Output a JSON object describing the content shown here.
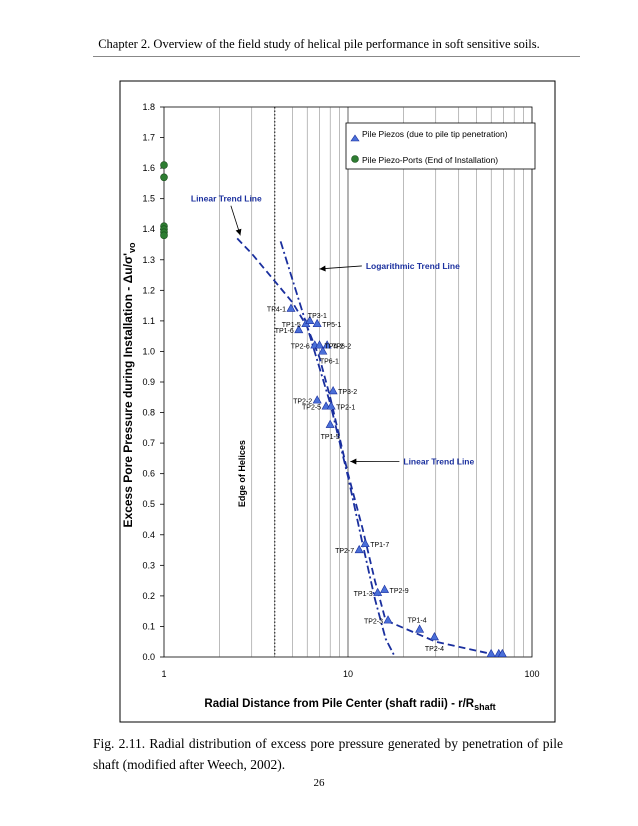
{
  "header": {
    "chapter_title": "Chapter 2.   Overview of the field study of helical pile performance in soft sensitive soils."
  },
  "figure": {
    "caption": "Fig.   2.11.   Radial distribution of excess pore pressure generated by penetration of pile shaft (modified after Weech, 2002).",
    "page_number": "26"
  },
  "chart_data": {
    "type": "scatter",
    "x_scale": "log",
    "xlim": [
      1,
      100
    ],
    "ylim": [
      0,
      1.8
    ],
    "xlabel": "Radial Distance from Pile Center (shaft radii) - r/R",
    "xlabel_sub": "shaft",
    "ylabel": "Excess Pore Pressure during Installation - Δu/σ'",
    "ylabel_sub": "vo",
    "x_ticks": [
      1,
      10,
      100
    ],
    "x_tick_labels": [
      "1",
      "10",
      "100"
    ],
    "y_ticks": [
      0,
      0.1,
      0.2,
      0.3,
      0.4,
      0.5,
      0.6,
      0.7,
      0.8,
      0.9,
      1.0,
      1.1,
      1.2,
      1.3,
      1.4,
      1.5,
      1.6,
      1.7,
      1.8
    ],
    "y_tick_labels": [
      "0.0",
      "0.1",
      "0.2",
      "0.3",
      "0.4",
      "0.5",
      "0.6",
      "0.7",
      "0.8",
      "0.9",
      "1.0",
      "1.1",
      "1.2",
      "1.3",
      "1.4",
      "1.5",
      "1.6",
      "1.7",
      "1.8"
    ],
    "legend_position": "top-right",
    "legend": [
      {
        "name": "Pile Piezos (due to pile tip penetration)",
        "marker": "triangle"
      },
      {
        "name": "Pile Piezo-Ports (End of Installation)",
        "marker": "circle"
      }
    ],
    "colors": {
      "triangle": "#4a6fd8",
      "circle": "#2e7d32",
      "line": "#1a2f9e"
    },
    "series": [
      {
        "name": "Pile Piezos (due to pile tip penetration)",
        "marker": "triangle",
        "points": [
          {
            "x": 4.9,
            "y": 1.14,
            "label": "TP4-1"
          },
          {
            "x": 5.4,
            "y": 1.07,
            "label": "TP1-6"
          },
          {
            "x": 5.9,
            "y": 1.09,
            "label": "TP1-5"
          },
          {
            "x": 6.2,
            "y": 1.1,
            "label": "TP3-1"
          },
          {
            "x": 6.6,
            "y": 1.02,
            "label": "TP2-6"
          },
          {
            "x": 6.8,
            "y": 1.09,
            "label": "TP5-1"
          },
          {
            "x": 7.0,
            "y": 1.02,
            "label": "TP4-2"
          },
          {
            "x": 7.3,
            "y": 1.0,
            "label": "TP6-1"
          },
          {
            "x": 7.7,
            "y": 1.02,
            "label": "TP6-2"
          },
          {
            "x": 6.8,
            "y": 0.84,
            "label": "TP2-2"
          },
          {
            "x": 7.6,
            "y": 0.82,
            "label": "TP2-5"
          },
          {
            "x": 8.1,
            "y": 0.82,
            "label": "TP2-1"
          },
          {
            "x": 8.3,
            "y": 0.87,
            "label": "TP3-2"
          },
          {
            "x": 8.0,
            "y": 0.76,
            "label": "TP1-5"
          },
          {
            "x": 11.5,
            "y": 0.35,
            "label": "TP2-7"
          },
          {
            "x": 12.4,
            "y": 0.37,
            "label": "TP1-7"
          },
          {
            "x": 14.5,
            "y": 0.21,
            "label": "TP1-3"
          },
          {
            "x": 15.8,
            "y": 0.22,
            "label": "TP2-9"
          },
          {
            "x": 16.5,
            "y": 0.12,
            "label": "TP2-3"
          },
          {
            "x": 24.5,
            "y": 0.09,
            "label": "TP1-4"
          },
          {
            "x": 29.5,
            "y": 0.065,
            "label": "TP2-4"
          },
          {
            "x": 60,
            "y": 0.01,
            "label": ""
          },
          {
            "x": 66,
            "y": 0.01,
            "label": ""
          },
          {
            "x": 69,
            "y": 0.01,
            "label": ""
          }
        ]
      },
      {
        "name": "Pile Piezo-Ports (End of Installation)",
        "marker": "circle",
        "points": [
          {
            "x": 1,
            "y": 1.61
          },
          {
            "x": 1,
            "y": 1.57
          },
          {
            "x": 1,
            "y": 1.41
          },
          {
            "x": 1,
            "y": 1.4
          },
          {
            "x": 1,
            "y": 1.39
          },
          {
            "x": 1,
            "y": 1.38
          }
        ]
      }
    ],
    "trend_lines": [
      {
        "name": "Linear Trend Line (upper)",
        "style": "dashed",
        "points": [
          [
            2.5,
            1.37
          ],
          [
            3.0,
            1.32
          ],
          [
            4.0,
            1.23
          ],
          [
            5.0,
            1.16
          ],
          [
            6.0,
            1.08
          ],
          [
            7.0,
            0.98
          ],
          [
            8.0,
            0.85
          ],
          [
            10.0,
            0.6
          ],
          [
            12.0,
            0.42
          ],
          [
            14.0,
            0.25
          ],
          [
            16.0,
            0.12
          ],
          [
            30.0,
            0.05
          ],
          [
            60.0,
            0.01
          ]
        ]
      },
      {
        "name": "Logarithmic Trend Line",
        "style": "dashdot",
        "points": [
          [
            4.3,
            1.36
          ],
          [
            6.0,
            1.08
          ],
          [
            8.0,
            0.83
          ],
          [
            10.0,
            0.59
          ],
          [
            12.0,
            0.37
          ],
          [
            14.0,
            0.19
          ],
          [
            16.0,
            0.06
          ],
          [
            18.0,
            0.0
          ]
        ]
      }
    ],
    "vertical_marker": {
      "x": 4.0,
      "label": "Edge of Helices"
    },
    "annotations": [
      {
        "text": "Linear Trend Line",
        "x": 1.4,
        "y": 1.49,
        "arrow_to": [
          2.6,
          1.38
        ]
      },
      {
        "text": "Logarithmic Trend Line",
        "x": 12.5,
        "y": 1.27,
        "arrow_to": [
          7.0,
          1.27
        ]
      },
      {
        "text": "Linear Trend Line",
        "x": 20.0,
        "y": 0.63,
        "arrow_to": [
          10.3,
          0.64
        ]
      }
    ]
  }
}
